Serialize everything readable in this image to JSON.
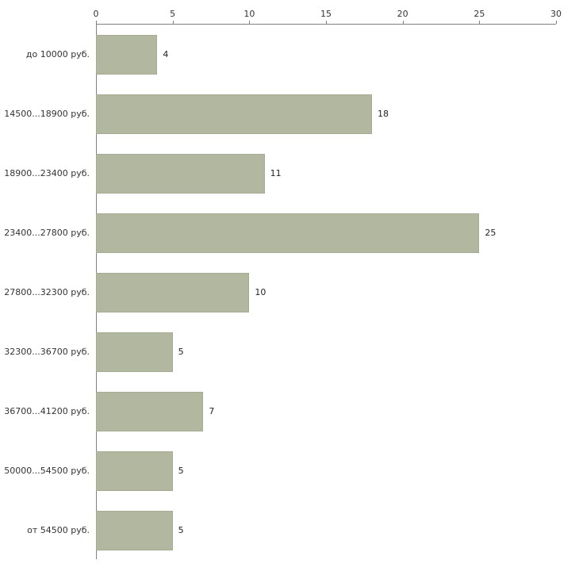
{
  "chart_data": {
    "type": "bar",
    "orientation": "horizontal",
    "title": "",
    "xlabel": "",
    "ylabel": "",
    "categories": [
      "до 10000 руб.",
      "14500...18900 руб.",
      "18900...23400 руб.",
      "23400...27800 руб.",
      "27800...32300 руб.",
      "32300...36700 руб.",
      "36700...41200 руб.",
      "50000...54500 руб.",
      "от 54500 руб."
    ],
    "values": [
      4,
      18,
      11,
      25,
      10,
      5,
      7,
      5,
      5
    ],
    "xlim": [
      0,
      30
    ],
    "xticks": [
      0,
      5,
      10,
      15,
      20,
      25,
      30
    ],
    "grid": false,
    "legend": false,
    "colors": {
      "bar_fill": "#b2b7a0",
      "bar_border": "#a6ac93",
      "axis": "#808080",
      "text": "#333333",
      "background": "#ffffff"
    }
  }
}
